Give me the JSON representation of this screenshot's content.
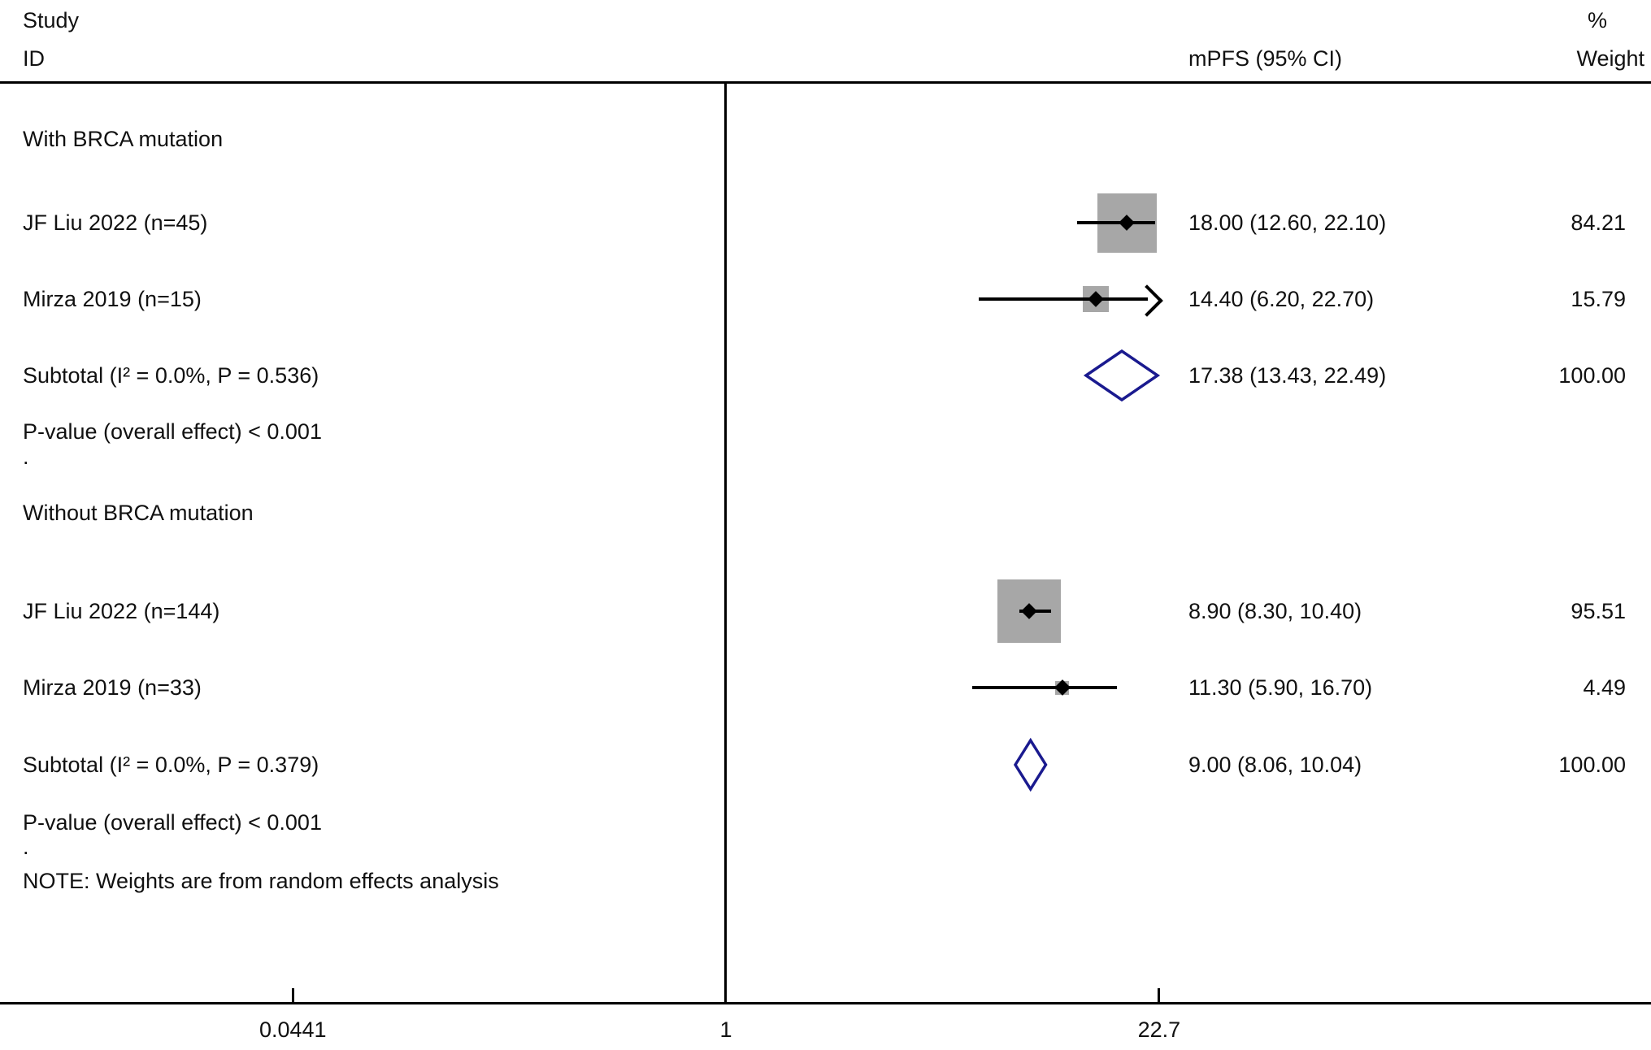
{
  "header": {
    "study": "Study",
    "id": "ID",
    "effect_col": "mPFS (95% CI)",
    "percent": "%",
    "weight": "Weight"
  },
  "colors": {
    "background": "#ffffff",
    "text": "#111111",
    "line": "#000000",
    "square": "#a7a7a7",
    "diamond": "#1a1a8f"
  },
  "chart_data": {
    "type": "forest",
    "title": "",
    "effect_label": "mPFS (95% CI)",
    "x_axis": {
      "scale": "log10",
      "ticks": [
        0.0441,
        1,
        22.7
      ],
      "tick_labels": [
        "0.0441",
        "1",
        "22.7"
      ],
      "null_value": 1
    },
    "groups": [
      {
        "name": "With BRCA mutation",
        "studies": [
          {
            "id": "JF Liu 2022  (n=45)",
            "estimate": 18.0,
            "ci_low": 12.6,
            "ci_high": 22.1,
            "display": "18.00 (12.60, 22.10)",
            "weight": "84.21"
          },
          {
            "id": "Mirza 2019  (n=15)",
            "estimate": 14.4,
            "ci_low": 6.2,
            "ci_high": 22.7,
            "display": "14.40 (6.20, 22.70)",
            "weight": "15.79",
            "arrow_high": true
          }
        ],
        "subtotal": {
          "id": "Subtotal  (I² = 0.0%, P = 0.536)",
          "estimate": 17.38,
          "ci_low": 13.43,
          "ci_high": 22.49,
          "display": "17.38 (13.43, 22.49)",
          "weight": "100.00"
        },
        "p_value": "P-value (overall effect) < 0.001",
        "trailing_dot": "."
      },
      {
        "name": "Without BRCA mutation",
        "studies": [
          {
            "id": "JF Liu 2022  (n=144)",
            "estimate": 8.9,
            "ci_low": 8.3,
            "ci_high": 10.4,
            "display": "8.90 (8.30, 10.40)",
            "weight": "95.51"
          },
          {
            "id": "Mirza 2019  (n=33)",
            "estimate": 11.3,
            "ci_low": 5.9,
            "ci_high": 16.7,
            "display": "11.30 (5.90, 16.70)",
            "weight": "4.49"
          }
        ],
        "subtotal": {
          "id": "Subtotal  (I² = 0.0%, P = 0.379)",
          "estimate": 9.0,
          "ci_low": 8.06,
          "ci_high": 10.04,
          "display": "9.00 (8.06, 10.04)",
          "weight": "100.00"
        },
        "p_value": "P-value (overall effect) < 0.001",
        "trailing_dot": "."
      }
    ],
    "note": "NOTE: Weights are from random effects analysis"
  }
}
